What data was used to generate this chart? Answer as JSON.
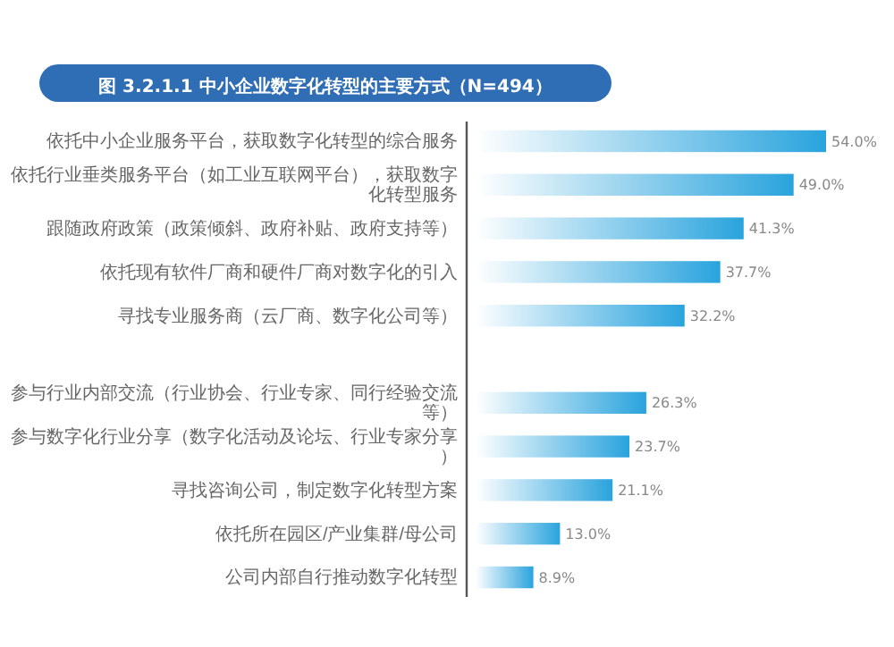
{
  "chart_data": {
    "type": "bar",
    "orientation": "horizontal",
    "title": "图 3.2.1.1 中小企业数字化转型的主要方式（N=494）",
    "categories": [
      "依托中小企业服务平台，获取数字化转型的综合服务",
      "依托行业垂类服务平台（如工业互联网平台），获取数字化转型服务",
      "跟随政府政策（政策倾斜、政府补贴、政府支持等）",
      "依托现有软件厂商和硬件厂商对数字化的引入",
      "寻找专业服务商（云厂商、数字化公司等）",
      null,
      "参与行业内部交流（行业协会、行业专家、同行经验交流等）",
      "参与数字化行业分享（数字化活动及论坛、行业专家分享）",
      "寻找咨询公司，制定数字化转型方案",
      "依托所在园区/产业集群/母公司",
      "公司内部自行推动数字化转型"
    ],
    "values": [
      54.0,
      49.0,
      41.3,
      37.7,
      32.2,
      null,
      26.3,
      23.7,
      21.1,
      13.0,
      8.9
    ],
    "value_labels": [
      "54.0%",
      "49.0%",
      "41.3%",
      "37.7%",
      "32.2%",
      null,
      "26.3%",
      "23.7%",
      "21.1%",
      "13.0%",
      "8.9%"
    ],
    "color": "#29a3dd",
    "tick_labels": "y"
  }
}
